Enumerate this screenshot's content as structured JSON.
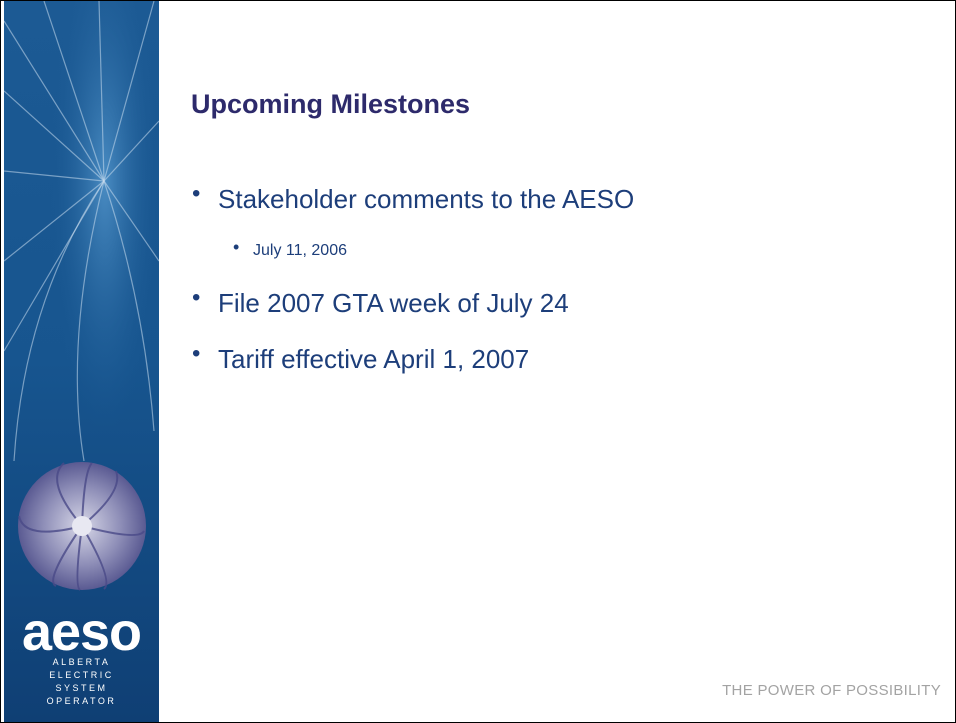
{
  "logo": {
    "name": "aeso",
    "lines": [
      "ALBERTA",
      "ELECTRIC",
      "SYSTEM",
      "OPERATOR"
    ]
  },
  "slide": {
    "title": "Upcoming Milestones",
    "bullets": [
      {
        "text": "Stakeholder comments to the AESO",
        "sub": [
          "July 11, 2006"
        ]
      },
      {
        "text": "File 2007 GTA week of July 24"
      },
      {
        "text": "Tariff effective April 1, 2007"
      }
    ],
    "footer": "THE POWER OF POSSIBILITY"
  }
}
